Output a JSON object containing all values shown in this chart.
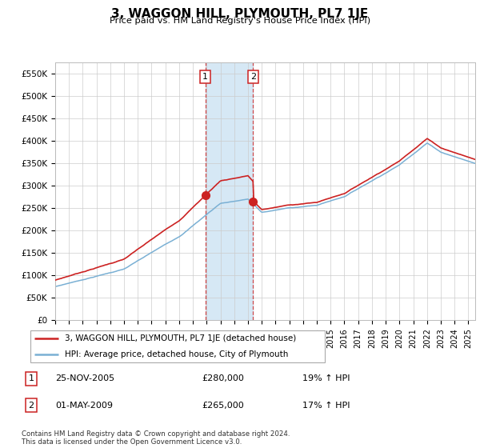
{
  "title": "3, WAGGON HILL, PLYMOUTH, PL7 1JE",
  "subtitle": "Price paid vs. HM Land Registry's House Price Index (HPI)",
  "ylabel_ticks": [
    "£0",
    "£50K",
    "£100K",
    "£150K",
    "£200K",
    "£250K",
    "£300K",
    "£350K",
    "£400K",
    "£450K",
    "£500K",
    "£550K"
  ],
  "ytick_values": [
    0,
    50000,
    100000,
    150000,
    200000,
    250000,
    300000,
    350000,
    400000,
    450000,
    500000,
    550000
  ],
  "ylim": [
    0,
    575000
  ],
  "xlim": [
    1995,
    2025.5
  ],
  "hpi_color": "#7ab0d4",
  "price_color": "#cc2222",
  "sale1_date_x": 2005.9,
  "sale1_price": 280000,
  "sale2_date_x": 2009.37,
  "sale2_price": 265000,
  "shade_color": "#d6e8f5",
  "legend_line1": "3, WAGGON HILL, PLYMOUTH, PL7 1JE (detached house)",
  "legend_line2": "HPI: Average price, detached house, City of Plymouth",
  "table_row1": [
    "1",
    "25-NOV-2005",
    "£280,000",
    "19% ↑ HPI"
  ],
  "table_row2": [
    "2",
    "01-MAY-2009",
    "£265,000",
    "17% ↑ HPI"
  ],
  "footer": "Contains HM Land Registry data © Crown copyright and database right 2024.\nThis data is licensed under the Open Government Licence v3.0.",
  "bg_color": "#ffffff",
  "grid_color": "#cccccc"
}
